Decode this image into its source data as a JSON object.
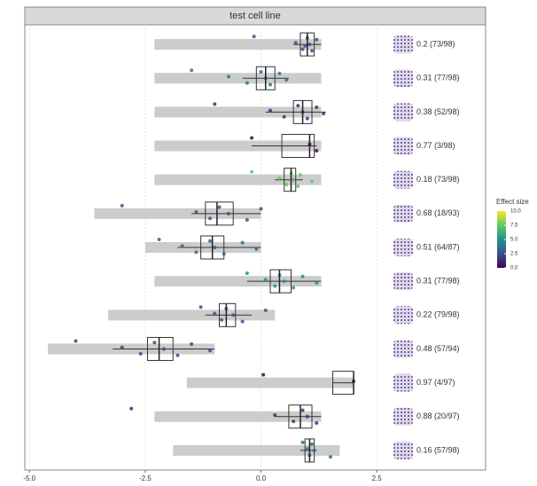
{
  "chart_data": {
    "type": "boxplot",
    "title": "test cell line",
    "xlim": [
      -5.1,
      4.85
    ],
    "xticks": [
      {
        "value": -5,
        "label": "-5.0"
      },
      {
        "value": -2.5,
        "label": "-2.5"
      },
      {
        "value": 0,
        "label": "0.0"
      },
      {
        "value": 2.5,
        "label": "2.5"
      }
    ],
    "grid": true,
    "range_color": "#cccccc",
    "legend_title": "Effect size",
    "clim": [
      0,
      10
    ],
    "colorbar_colors": [
      "#440154",
      "#3b528b",
      "#21918c",
      "#5ec962",
      "#fde725"
    ],
    "colorbar_ticks": [
      {
        "value": 0,
        "label": "0.0"
      },
      {
        "value": 2.5,
        "label": "2.5"
      },
      {
        "value": 5,
        "label": "5.0"
      },
      {
        "value": 7.5,
        "label": "7.5"
      },
      {
        "value": 10,
        "label": "10.0"
      }
    ],
    "rows": [
      {
        "label": "0.2 (73/98)",
        "range": [
          -2.3,
          1.3
        ],
        "box": {
          "whisker_low": 0.7,
          "q1": 0.85,
          "median": 1.0,
          "q3": 1.15,
          "whisker_high": 1.3
        },
        "points": [
          -0.15,
          0.75,
          0.9,
          1.0,
          1.05,
          1.1,
          1.2,
          0.95
        ],
        "point_color": "#3b528b"
      },
      {
        "label": "0.31 (77/98)",
        "range": [
          -2.3,
          1.3
        ],
        "box": {
          "whisker_low": -0.4,
          "q1": -0.1,
          "median": 0.1,
          "q3": 0.3,
          "whisker_high": 0.6
        },
        "points": [
          -1.5,
          -0.7,
          -0.3,
          0.0,
          0.1,
          0.2,
          0.4,
          0.55
        ],
        "point_color": "#2c728e"
      },
      {
        "label": "0.38 (52/98)",
        "range": [
          -2.3,
          1.3
        ],
        "box": {
          "whisker_low": 0.1,
          "q1": 0.7,
          "median": 0.9,
          "q3": 1.1,
          "whisker_high": 1.4
        },
        "points": [
          -1.0,
          0.2,
          0.5,
          0.8,
          0.9,
          1.0,
          1.2,
          1.35
        ],
        "point_color": "#472d7b"
      },
      {
        "label": "0.77 (3/98)",
        "range": [
          -2.3,
          1.3
        ],
        "box": {
          "whisker_low": -0.2,
          "q1": 0.45,
          "median": 1.05,
          "q3": 1.15,
          "whisker_high": 1.2
        },
        "points": [
          -0.2,
          1.05,
          1.2
        ],
        "point_color": "#440154"
      },
      {
        "label": "0.18 (73/98)",
        "range": [
          -2.3,
          1.3
        ],
        "box": {
          "whisker_low": 0.3,
          "q1": 0.5,
          "median": 0.65,
          "q3": 0.75,
          "whisker_high": 0.9
        },
        "points": [
          -0.2,
          0.4,
          0.55,
          0.65,
          0.7,
          0.8,
          0.85,
          1.1
        ],
        "point_color": "#5ec962"
      },
      {
        "label": "0.68 (18/93)",
        "range": [
          -3.6,
          0.0
        ],
        "box": {
          "whisker_low": -1.5,
          "q1": -1.2,
          "median": -0.95,
          "q3": -0.6,
          "whisker_high": 0.0
        },
        "points": [
          -3.0,
          -1.4,
          -1.1,
          -0.9,
          -0.7,
          -0.3,
          0.0
        ],
        "point_color": "#3b528b"
      },
      {
        "label": "0.51 (64/87)",
        "range": [
          -2.5,
          0.0
        ],
        "box": {
          "whisker_low": -1.8,
          "q1": -1.3,
          "median": -1.05,
          "q3": -0.8,
          "whisker_high": 0.0
        },
        "points": [
          -2.2,
          -1.7,
          -1.4,
          -1.1,
          -1.0,
          -0.8,
          -0.4,
          -0.1
        ],
        "point_color": "#31688e"
      },
      {
        "label": "0.31 (77/98)",
        "range": [
          -2.3,
          1.3
        ],
        "box": {
          "whisker_low": -0.3,
          "q1": 0.2,
          "median": 0.4,
          "q3": 0.65,
          "whisker_high": 1.3
        },
        "points": [
          -0.3,
          0.1,
          0.3,
          0.4,
          0.5,
          0.7,
          0.9,
          1.2
        ],
        "point_color": "#21918c"
      },
      {
        "label": "0.22 (79/98)",
        "range": [
          -3.3,
          0.3
        ],
        "box": {
          "whisker_low": -1.2,
          "q1": -0.9,
          "median": -0.75,
          "q3": -0.55,
          "whisker_high": -0.2
        },
        "points": [
          -1.3,
          -1.0,
          -0.85,
          -0.75,
          -0.6,
          -0.4,
          0.1
        ],
        "point_color": "#3b528b"
      },
      {
        "label": "0.48 (57/94)",
        "range": [
          -4.6,
          -1.0
        ],
        "box": {
          "whisker_low": -3.2,
          "q1": -2.45,
          "median": -2.2,
          "q3": -1.9,
          "whisker_high": -1.0
        },
        "points": [
          -4.0,
          -3.0,
          -2.6,
          -2.3,
          -2.1,
          -1.8,
          -1.5,
          -1.1
        ],
        "point_color": "#414487"
      },
      {
        "label": "0.97 (4/97)",
        "range": [
          -1.6,
          2.0
        ],
        "box": {
          "whisker_low": 1.55,
          "q1": 1.55,
          "median": 2.0,
          "q3": 2.0,
          "whisker_high": 2.0
        },
        "points": [
          0.05,
          2.0
        ],
        "point_color": "#440154"
      },
      {
        "label": "0.88 (20/97)",
        "range": [
          -2.3,
          1.3
        ],
        "box": {
          "whisker_low": 0.3,
          "q1": 0.6,
          "median": 0.85,
          "q3": 1.1,
          "whisker_high": 1.3
        },
        "points": [
          -2.8,
          0.3,
          0.7,
          0.9,
          1.0,
          1.2
        ],
        "point_color": "#472d7b"
      },
      {
        "label": "0.16 (57/98)",
        "range": [
          -1.9,
          1.7
        ],
        "box": {
          "whisker_low": 0.85,
          "q1": 0.95,
          "median": 1.05,
          "q3": 1.15,
          "whisker_high": 1.2
        },
        "points": [
          0.9,
          1.0,
          1.05,
          1.1,
          1.15,
          1.5
        ],
        "point_color": "#2c728e"
      }
    ]
  }
}
